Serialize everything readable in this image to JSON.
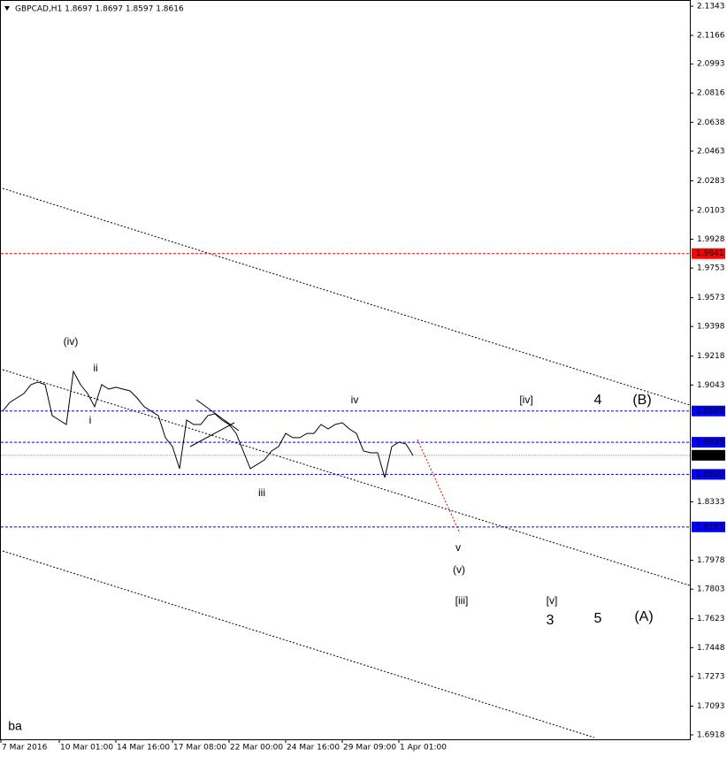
{
  "chart_data": {
    "type": "line",
    "title": "GBPCAD,H1  1.8697 1.8697 1.8597 1.8616",
    "color": "#000000",
    "ylim": [
      1.6891,
      2.1381
    ],
    "yticks": [
      2.1343,
      2.1166,
      2.0993,
      2.0816,
      2.0638,
      2.0463,
      2.0283,
      2.0103,
      1.9928,
      1.9753,
      1.9573,
      1.9398,
      1.9218,
      1.9043,
      1.8333,
      1.7978,
      1.7803,
      1.7623,
      1.7448,
      1.7273,
      1.7093,
      1.6918
    ],
    "x_labels": [
      "7 Mar 2016",
      "10 Mar 01:00",
      "14 Mar 16:00",
      "17 Mar 08:00",
      "22 Mar 00:00",
      "24 Mar 16:00",
      "29 Mar 09:00",
      "1 Apr 01:00"
    ],
    "values": [
      1.8884,
      1.8937,
      1.8964,
      1.8991,
      1.9045,
      1.9061,
      1.9045,
      1.8857,
      1.883,
      1.8803,
      1.9125,
      1.9045,
      1.8991,
      1.8911,
      1.9045,
      1.9018,
      1.9029,
      1.9018,
      1.9007,
      1.8964,
      1.8911,
      1.8884,
      1.8857,
      1.8723,
      1.8669,
      1.8535,
      1.883,
      1.8803,
      1.8803,
      1.8857,
      1.8868,
      1.883,
      1.8803,
      1.8749,
      1.8642,
      1.8535,
      1.8561,
      1.8588,
      1.8642,
      1.8669,
      1.8749,
      1.8723,
      1.8723,
      1.8749,
      1.8749,
      1.8803,
      1.8776,
      1.8803,
      1.8814,
      1.8776,
      1.8749,
      1.8642,
      1.8631,
      1.8631,
      1.8481,
      1.8669,
      1.8696,
      1.8685,
      1.8615
    ],
    "levels": [
      {
        "value": 1.9841,
        "color": "#ff0000"
      },
      {
        "value": 1.8885,
        "color": "#0000ff"
      },
      {
        "value": 1.8695,
        "color": "#0000ff"
      },
      {
        "value": 1.8616,
        "color": "#000000"
      },
      {
        "value": 1.85,
        "label": "1.8500",
        "color": "#0000ff"
      },
      {
        "value": 1.8181,
        "color": "#0000ff"
      }
    ],
    "annotations": [
      {
        "text": "(iv)",
        "color": "#008000"
      },
      {
        "text": "ii",
        "color": "#0000ff"
      },
      {
        "text": "i",
        "color": "#0000ff"
      },
      {
        "text": "iii",
        "color": "#0000ff"
      },
      {
        "text": "iv",
        "color": "#0000ff"
      },
      {
        "text": "v",
        "color": "#0000ff"
      },
      {
        "text": "(v)",
        "color": "#008000"
      },
      {
        "text": "[iii]",
        "color": "#ff0000"
      },
      {
        "text": "[iv]",
        "color": "#ff0000"
      },
      {
        "text": "4",
        "color": "#0000ff"
      },
      {
        "text": "(B)",
        "color": "#008000"
      },
      {
        "text": "[v]",
        "color": "#ff0000"
      },
      {
        "text": "3",
        "color": "#0000ff"
      },
      {
        "text": "5",
        "color": "#0000ff"
      },
      {
        "text": "(A)",
        "color": "#008000"
      },
      {
        "text": "ba",
        "color": "#000000"
      }
    ]
  }
}
